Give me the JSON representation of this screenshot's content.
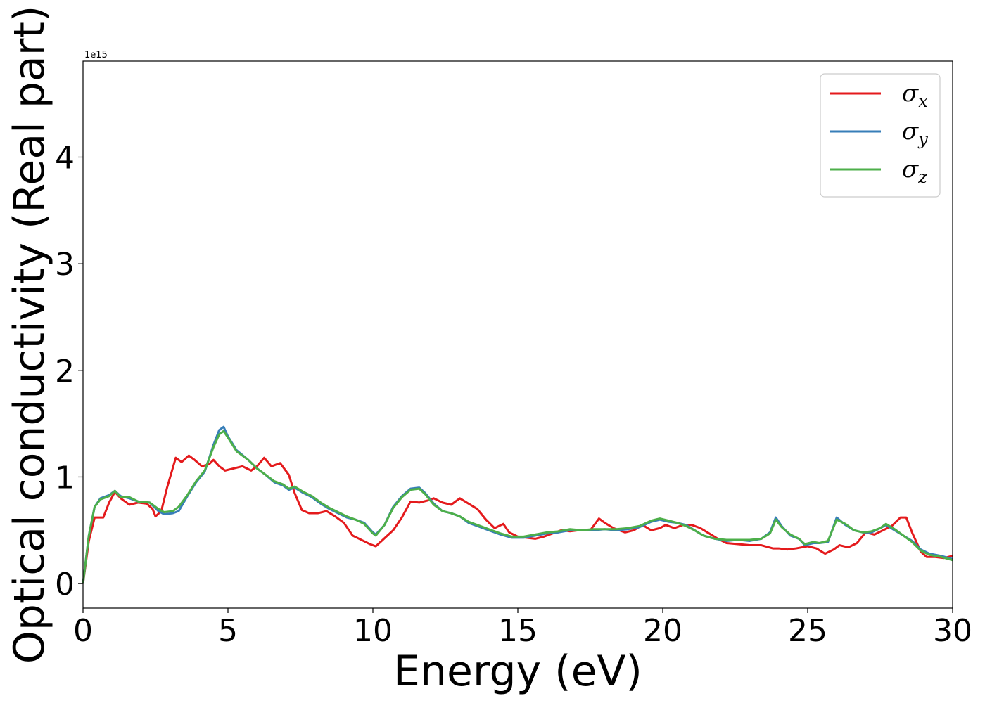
{
  "chart_data": {
    "type": "line",
    "xlabel": "Energy (eV)",
    "ylabel": "Optical conductivity (Real part)",
    "y_offset_label": "1e15",
    "xlim": [
      0,
      30
    ],
    "ylim": [
      -0.23,
      4.9
    ],
    "x_ticks": [
      0,
      5,
      10,
      15,
      20,
      25,
      30
    ],
    "x_tick_labels": [
      "0",
      "5",
      "10",
      "15",
      "20",
      "25",
      "30"
    ],
    "y_ticks": [
      0,
      1,
      2,
      3,
      4
    ],
    "y_tick_labels": [
      "0",
      "1",
      "2",
      "3",
      "4"
    ],
    "grid": false,
    "legend_position": "top-right",
    "series": [
      {
        "name": "σx",
        "label_base": "σ",
        "label_sub": "x",
        "color": "#e41a1c",
        "points": [
          [
            0,
            0
          ],
          [
            0.2,
            0.4
          ],
          [
            0.4,
            0.62
          ],
          [
            0.7,
            0.62
          ],
          [
            0.9,
            0.76
          ],
          [
            1.1,
            0.86
          ],
          [
            1.3,
            0.8
          ],
          [
            1.6,
            0.74
          ],
          [
            1.9,
            0.76
          ],
          [
            2.2,
            0.75
          ],
          [
            2.4,
            0.7
          ],
          [
            2.5,
            0.63
          ],
          [
            2.7,
            0.68
          ],
          [
            2.9,
            0.9
          ],
          [
            3.2,
            1.18
          ],
          [
            3.4,
            1.14
          ],
          [
            3.65,
            1.2
          ],
          [
            3.85,
            1.16
          ],
          [
            4.1,
            1.1
          ],
          [
            4.35,
            1.12
          ],
          [
            4.5,
            1.16
          ],
          [
            4.7,
            1.1
          ],
          [
            4.9,
            1.06
          ],
          [
            5.2,
            1.08
          ],
          [
            5.5,
            1.1
          ],
          [
            5.8,
            1.06
          ],
          [
            6.0,
            1.1
          ],
          [
            6.25,
            1.18
          ],
          [
            6.5,
            1.1
          ],
          [
            6.8,
            1.13
          ],
          [
            7.1,
            1.02
          ],
          [
            7.3,
            0.85
          ],
          [
            7.55,
            0.69
          ],
          [
            7.8,
            0.66
          ],
          [
            8.1,
            0.66
          ],
          [
            8.4,
            0.68
          ],
          [
            8.7,
            0.63
          ],
          [
            9.0,
            0.57
          ],
          [
            9.3,
            0.45
          ],
          [
            9.6,
            0.41
          ],
          [
            9.9,
            0.37
          ],
          [
            10.1,
            0.35
          ],
          [
            10.3,
            0.4
          ],
          [
            10.7,
            0.5
          ],
          [
            11.0,
            0.62
          ],
          [
            11.3,
            0.77
          ],
          [
            11.6,
            0.76
          ],
          [
            11.9,
            0.78
          ],
          [
            12.1,
            0.8
          ],
          [
            12.4,
            0.76
          ],
          [
            12.7,
            0.74
          ],
          [
            13.0,
            0.8
          ],
          [
            13.3,
            0.75
          ],
          [
            13.6,
            0.7
          ],
          [
            13.9,
            0.6
          ],
          [
            14.2,
            0.52
          ],
          [
            14.5,
            0.56
          ],
          [
            14.7,
            0.48
          ],
          [
            15.0,
            0.44
          ],
          [
            15.3,
            0.43
          ],
          [
            15.6,
            0.42
          ],
          [
            15.9,
            0.44
          ],
          [
            16.2,
            0.47
          ],
          [
            16.5,
            0.5
          ],
          [
            16.8,
            0.49
          ],
          [
            17.1,
            0.5
          ],
          [
            17.5,
            0.5
          ],
          [
            17.8,
            0.61
          ],
          [
            18.0,
            0.57
          ],
          [
            18.3,
            0.52
          ],
          [
            18.7,
            0.48
          ],
          [
            19.0,
            0.5
          ],
          [
            19.3,
            0.55
          ],
          [
            19.6,
            0.5
          ],
          [
            19.9,
            0.52
          ],
          [
            20.1,
            0.55
          ],
          [
            20.4,
            0.52
          ],
          [
            20.7,
            0.55
          ],
          [
            21.0,
            0.55
          ],
          [
            21.3,
            0.52
          ],
          [
            21.6,
            0.47
          ],
          [
            21.9,
            0.42
          ],
          [
            22.2,
            0.38
          ],
          [
            22.6,
            0.37
          ],
          [
            23.0,
            0.36
          ],
          [
            23.4,
            0.36
          ],
          [
            23.8,
            0.33
          ],
          [
            24.0,
            0.33
          ],
          [
            24.3,
            0.32
          ],
          [
            24.6,
            0.33
          ],
          [
            25.0,
            0.35
          ],
          [
            25.3,
            0.33
          ],
          [
            25.6,
            0.28
          ],
          [
            25.9,
            0.32
          ],
          [
            26.1,
            0.36
          ],
          [
            26.4,
            0.34
          ],
          [
            26.7,
            0.38
          ],
          [
            27.0,
            0.48
          ],
          [
            27.3,
            0.46
          ],
          [
            27.6,
            0.5
          ],
          [
            27.9,
            0.54
          ],
          [
            28.2,
            0.62
          ],
          [
            28.4,
            0.62
          ],
          [
            28.6,
            0.48
          ],
          [
            28.9,
            0.3
          ],
          [
            29.1,
            0.25
          ],
          [
            29.4,
            0.25
          ],
          [
            29.7,
            0.24
          ],
          [
            30.0,
            0.26
          ]
        ]
      },
      {
        "name": "σy",
        "label_base": "σ",
        "label_sub": "y",
        "color": "#377eb8",
        "points": [
          [
            0,
            0
          ],
          [
            0.2,
            0.45
          ],
          [
            0.4,
            0.72
          ],
          [
            0.6,
            0.8
          ],
          [
            0.9,
            0.83
          ],
          [
            1.1,
            0.87
          ],
          [
            1.3,
            0.82
          ],
          [
            1.6,
            0.8
          ],
          [
            1.9,
            0.77
          ],
          [
            2.3,
            0.76
          ],
          [
            2.6,
            0.68
          ],
          [
            2.8,
            0.65
          ],
          [
            3.1,
            0.66
          ],
          [
            3.3,
            0.68
          ],
          [
            3.6,
            0.82
          ],
          [
            3.9,
            0.95
          ],
          [
            4.2,
            1.05
          ],
          [
            4.5,
            1.3
          ],
          [
            4.7,
            1.44
          ],
          [
            4.85,
            1.47
          ],
          [
            5.0,
            1.38
          ],
          [
            5.3,
            1.25
          ],
          [
            5.7,
            1.16
          ],
          [
            6.0,
            1.08
          ],
          [
            6.3,
            1.02
          ],
          [
            6.6,
            0.95
          ],
          [
            6.9,
            0.92
          ],
          [
            7.1,
            0.88
          ],
          [
            7.3,
            0.9
          ],
          [
            7.6,
            0.85
          ],
          [
            7.9,
            0.81
          ],
          [
            8.2,
            0.75
          ],
          [
            8.5,
            0.7
          ],
          [
            8.8,
            0.66
          ],
          [
            9.1,
            0.62
          ],
          [
            9.4,
            0.6
          ],
          [
            9.7,
            0.57
          ],
          [
            10.0,
            0.48
          ],
          [
            10.1,
            0.46
          ],
          [
            10.4,
            0.55
          ],
          [
            10.7,
            0.72
          ],
          [
            11.0,
            0.82
          ],
          [
            11.3,
            0.89
          ],
          [
            11.6,
            0.9
          ],
          [
            11.8,
            0.85
          ],
          [
            12.1,
            0.75
          ],
          [
            12.4,
            0.68
          ],
          [
            12.7,
            0.66
          ],
          [
            13.0,
            0.63
          ],
          [
            13.3,
            0.57
          ],
          [
            13.6,
            0.54
          ],
          [
            14.0,
            0.5
          ],
          [
            14.4,
            0.46
          ],
          [
            14.8,
            0.43
          ],
          [
            15.2,
            0.43
          ],
          [
            15.6,
            0.45
          ],
          [
            16.0,
            0.47
          ],
          [
            16.4,
            0.48
          ],
          [
            16.8,
            0.5
          ],
          [
            17.2,
            0.5
          ],
          [
            17.6,
            0.5
          ],
          [
            18.0,
            0.51
          ],
          [
            18.4,
            0.5
          ],
          [
            18.8,
            0.51
          ],
          [
            19.2,
            0.53
          ],
          [
            19.6,
            0.58
          ],
          [
            19.9,
            0.6
          ],
          [
            20.2,
            0.58
          ],
          [
            20.5,
            0.57
          ],
          [
            20.8,
            0.55
          ],
          [
            21.1,
            0.5
          ],
          [
            21.4,
            0.45
          ],
          [
            21.8,
            0.42
          ],
          [
            22.2,
            0.4
          ],
          [
            22.6,
            0.41
          ],
          [
            23.0,
            0.4
          ],
          [
            23.4,
            0.42
          ],
          [
            23.7,
            0.48
          ],
          [
            23.9,
            0.62
          ],
          [
            24.1,
            0.54
          ],
          [
            24.4,
            0.45
          ],
          [
            24.7,
            0.42
          ],
          [
            24.9,
            0.36
          ],
          [
            25.2,
            0.38
          ],
          [
            25.4,
            0.38
          ],
          [
            25.7,
            0.39
          ],
          [
            26.0,
            0.62
          ],
          [
            26.3,
            0.55
          ],
          [
            26.6,
            0.5
          ],
          [
            26.9,
            0.48
          ],
          [
            27.2,
            0.48
          ],
          [
            27.5,
            0.52
          ],
          [
            27.7,
            0.55
          ],
          [
            28.0,
            0.5
          ],
          [
            28.3,
            0.45
          ],
          [
            28.6,
            0.4
          ],
          [
            28.9,
            0.32
          ],
          [
            29.2,
            0.28
          ],
          [
            29.6,
            0.26
          ],
          [
            30.0,
            0.23
          ]
        ]
      },
      {
        "name": "σz",
        "label_base": "σ",
        "label_sub": "z",
        "color": "#4daf4a",
        "points": [
          [
            0,
            0
          ],
          [
            0.2,
            0.45
          ],
          [
            0.4,
            0.72
          ],
          [
            0.6,
            0.79
          ],
          [
            0.9,
            0.82
          ],
          [
            1.1,
            0.87
          ],
          [
            1.3,
            0.81
          ],
          [
            1.6,
            0.81
          ],
          [
            1.9,
            0.77
          ],
          [
            2.3,
            0.76
          ],
          [
            2.6,
            0.7
          ],
          [
            2.8,
            0.67
          ],
          [
            3.1,
            0.68
          ],
          [
            3.3,
            0.72
          ],
          [
            3.6,
            0.83
          ],
          [
            3.9,
            0.96
          ],
          [
            4.2,
            1.06
          ],
          [
            4.5,
            1.28
          ],
          [
            4.7,
            1.4
          ],
          [
            4.85,
            1.43
          ],
          [
            5.0,
            1.37
          ],
          [
            5.3,
            1.24
          ],
          [
            5.7,
            1.16
          ],
          [
            6.0,
            1.08
          ],
          [
            6.3,
            1.02
          ],
          [
            6.6,
            0.96
          ],
          [
            6.9,
            0.93
          ],
          [
            7.1,
            0.89
          ],
          [
            7.3,
            0.91
          ],
          [
            7.6,
            0.86
          ],
          [
            7.9,
            0.82
          ],
          [
            8.2,
            0.76
          ],
          [
            8.5,
            0.71
          ],
          [
            8.8,
            0.67
          ],
          [
            9.1,
            0.63
          ],
          [
            9.4,
            0.6
          ],
          [
            9.7,
            0.56
          ],
          [
            10.0,
            0.47
          ],
          [
            10.1,
            0.45
          ],
          [
            10.4,
            0.55
          ],
          [
            10.7,
            0.71
          ],
          [
            11.0,
            0.81
          ],
          [
            11.3,
            0.88
          ],
          [
            11.6,
            0.89
          ],
          [
            11.8,
            0.84
          ],
          [
            12.1,
            0.74
          ],
          [
            12.4,
            0.68
          ],
          [
            12.7,
            0.66
          ],
          [
            13.0,
            0.63
          ],
          [
            13.3,
            0.58
          ],
          [
            13.6,
            0.55
          ],
          [
            14.0,
            0.51
          ],
          [
            14.4,
            0.47
          ],
          [
            14.8,
            0.44
          ],
          [
            15.2,
            0.44
          ],
          [
            15.6,
            0.46
          ],
          [
            16.0,
            0.48
          ],
          [
            16.4,
            0.49
          ],
          [
            16.8,
            0.51
          ],
          [
            17.2,
            0.5
          ],
          [
            17.6,
            0.51
          ],
          [
            18.0,
            0.51
          ],
          [
            18.4,
            0.51
          ],
          [
            18.8,
            0.52
          ],
          [
            19.2,
            0.54
          ],
          [
            19.6,
            0.59
          ],
          [
            19.9,
            0.61
          ],
          [
            20.2,
            0.59
          ],
          [
            20.5,
            0.57
          ],
          [
            20.8,
            0.54
          ],
          [
            21.1,
            0.5
          ],
          [
            21.4,
            0.45
          ],
          [
            21.8,
            0.42
          ],
          [
            22.2,
            0.41
          ],
          [
            22.6,
            0.41
          ],
          [
            23.0,
            0.41
          ],
          [
            23.4,
            0.42
          ],
          [
            23.7,
            0.47
          ],
          [
            23.9,
            0.6
          ],
          [
            24.1,
            0.53
          ],
          [
            24.4,
            0.46
          ],
          [
            24.7,
            0.42
          ],
          [
            24.9,
            0.37
          ],
          [
            25.2,
            0.39
          ],
          [
            25.4,
            0.38
          ],
          [
            25.7,
            0.4
          ],
          [
            26.0,
            0.6
          ],
          [
            26.3,
            0.56
          ],
          [
            26.6,
            0.5
          ],
          [
            26.9,
            0.48
          ],
          [
            27.2,
            0.49
          ],
          [
            27.5,
            0.52
          ],
          [
            27.7,
            0.56
          ],
          [
            28.0,
            0.51
          ],
          [
            28.3,
            0.45
          ],
          [
            28.6,
            0.39
          ],
          [
            28.9,
            0.31
          ],
          [
            29.2,
            0.27
          ],
          [
            29.6,
            0.25
          ],
          [
            30.0,
            0.22
          ]
        ]
      }
    ]
  }
}
